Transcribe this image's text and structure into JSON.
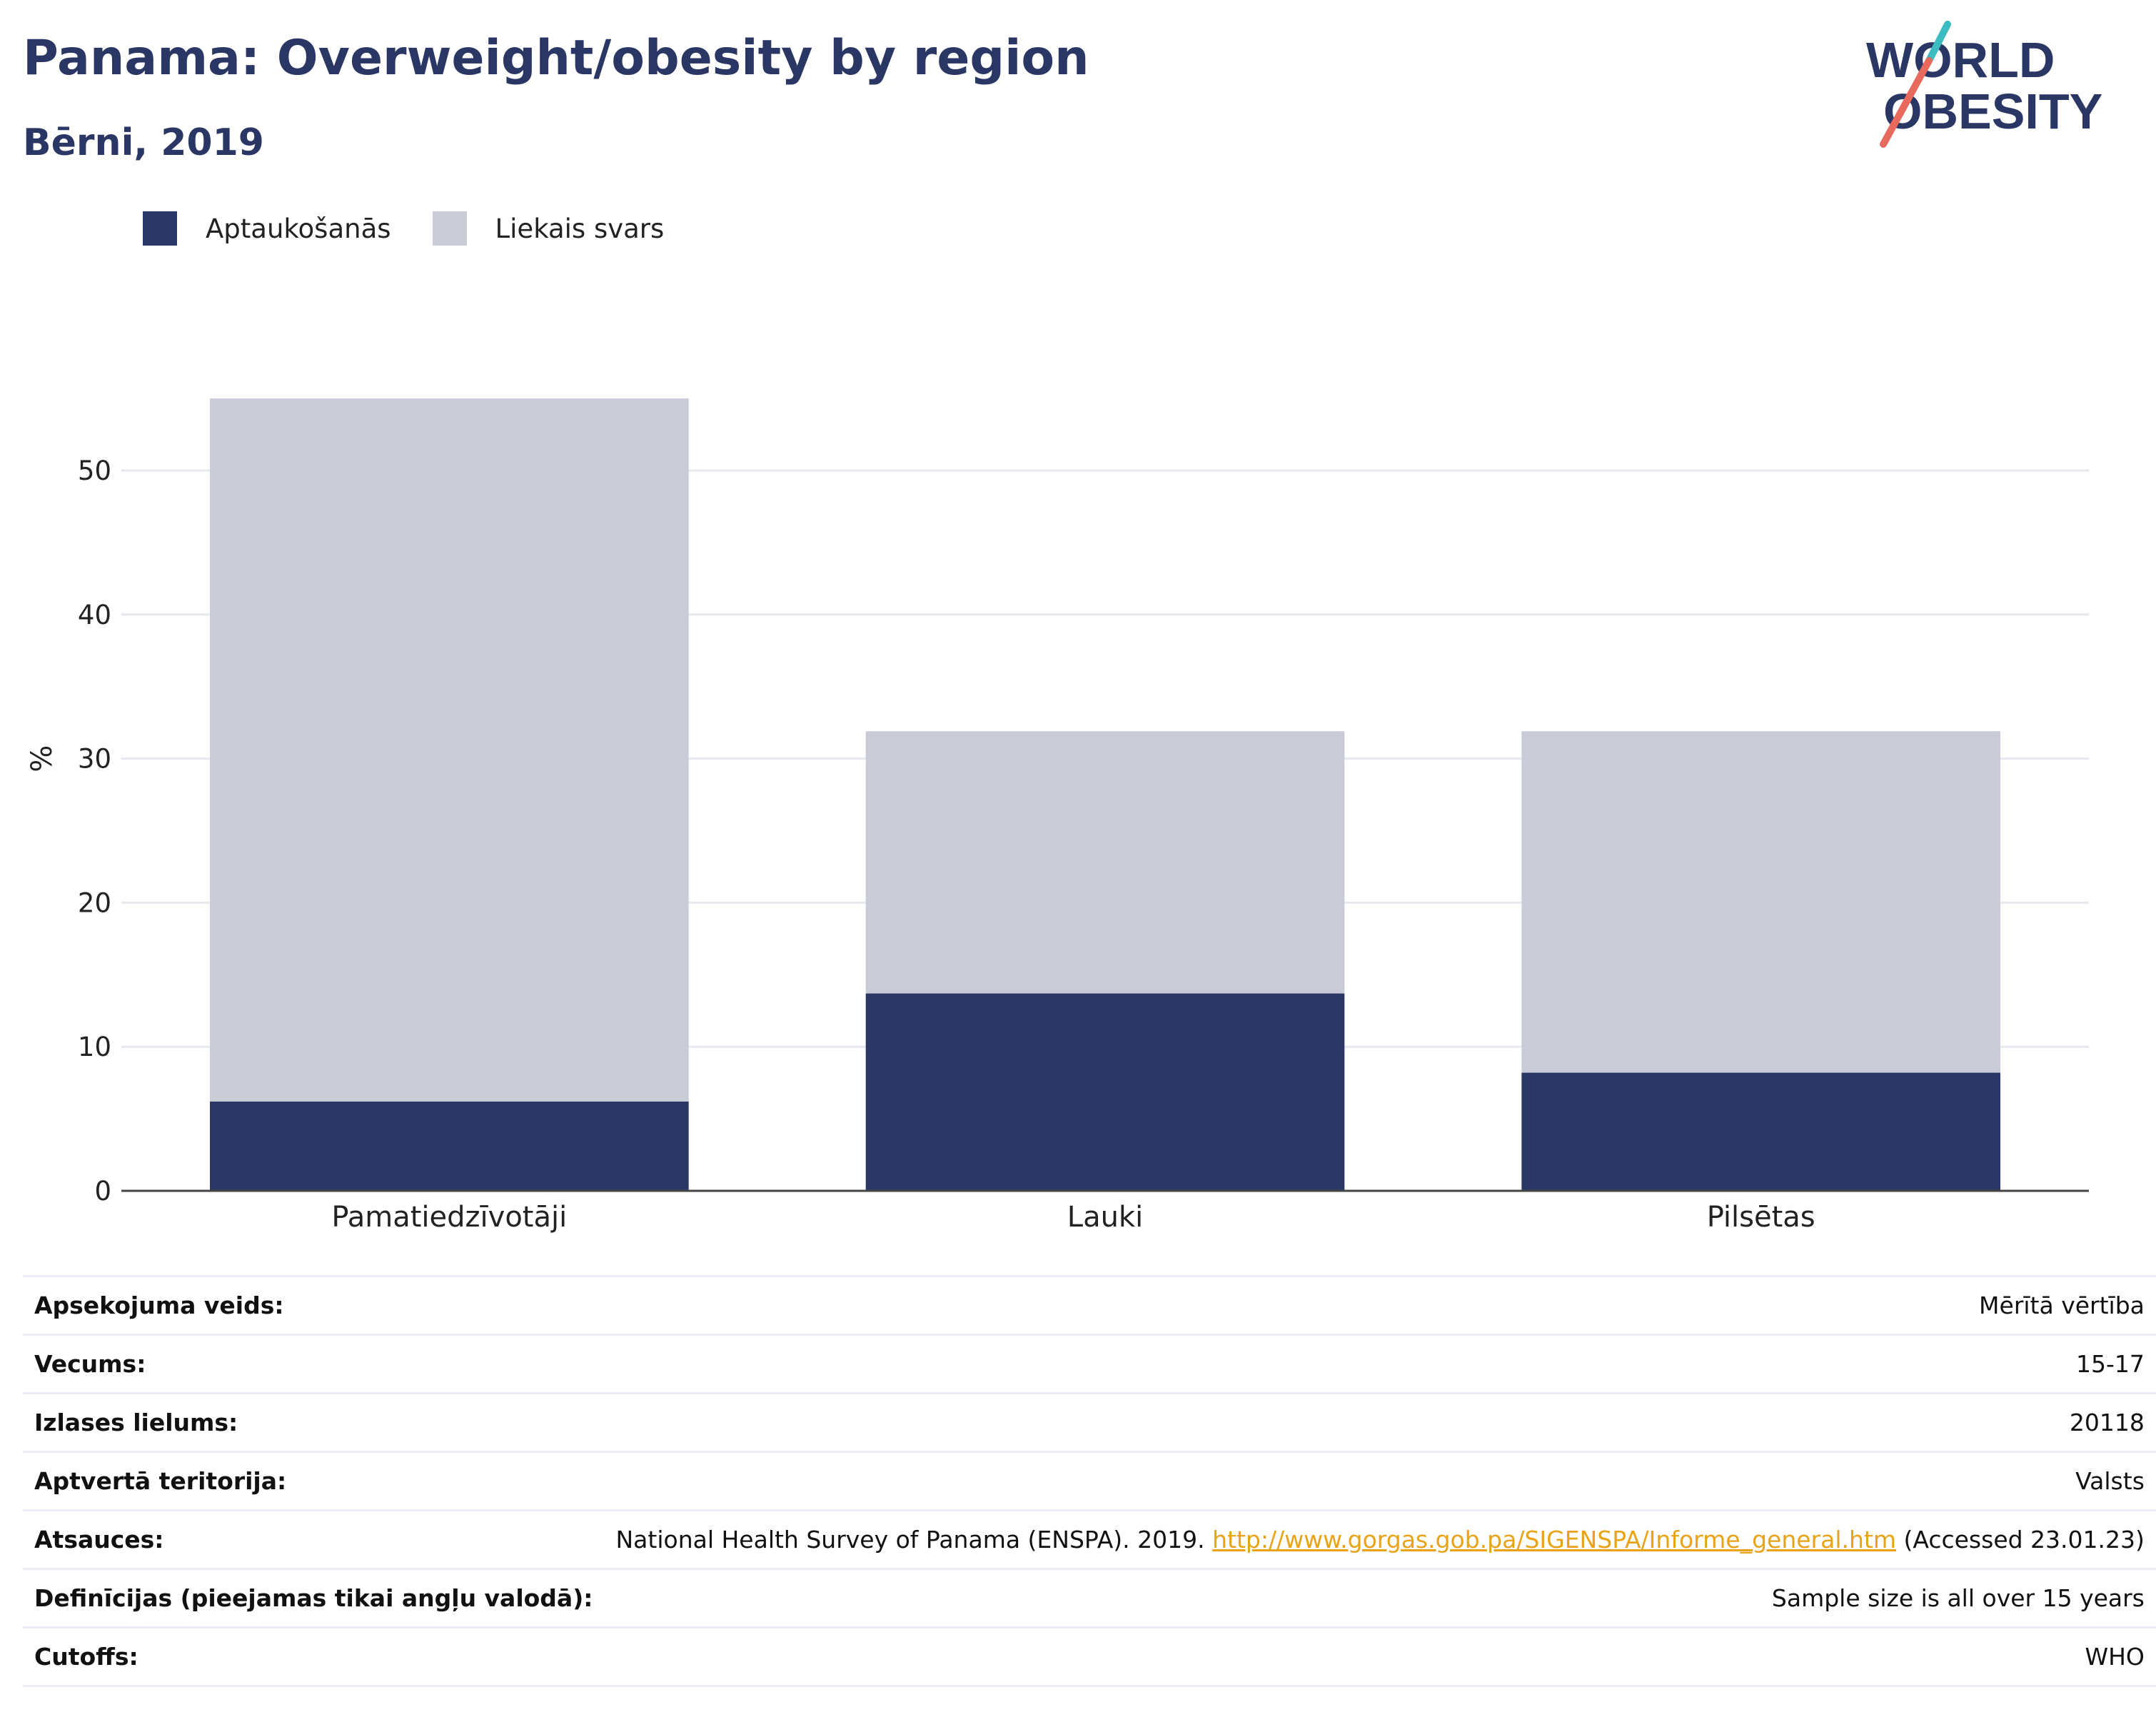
{
  "header": {
    "title": "Panama: Overweight/obesity by region",
    "subtitle": "Bērni, 2019"
  },
  "logo": {
    "line1": "WORLD",
    "line2": "OBESITY",
    "accent_teal": "#3bbcc0",
    "accent_coral": "#e86a5c",
    "text_color": "#2a3663"
  },
  "colors": {
    "obesity": "#2a3663",
    "overweight": "#c9ccd7",
    "title": "#2a3663",
    "link": "#e8a317"
  },
  "legend": {
    "items": [
      {
        "label": "Aptaukošanās",
        "color": "#2a3663"
      },
      {
        "label": "Liekais svars",
        "color": "#c9ccd7"
      }
    ]
  },
  "chart_data": {
    "type": "bar",
    "stacked": true,
    "categories": [
      "Pamatiedzīvotāji",
      "Lauki",
      "Pilsētas"
    ],
    "series": [
      {
        "name": "Aptaukošanās",
        "values": [
          6.2,
          13.7,
          8.2
        ],
        "color": "#2a3663"
      },
      {
        "name": "Liekais svars",
        "values": [
          48.8,
          18.2,
          23.7
        ],
        "color": "#c9ccd7"
      }
    ],
    "ylabel": "%",
    "ylim": [
      0,
      60
    ],
    "yticks": [
      0,
      10,
      20,
      30,
      40,
      50
    ],
    "grid": true
  },
  "info": {
    "rows": [
      {
        "label": "Apsekojuma veids:",
        "value": "Mērītā vērtība"
      },
      {
        "label": "Vecums:",
        "value": "15-17"
      },
      {
        "label": "Izlases lielums:",
        "value": "20118"
      },
      {
        "label": "Aptvertā teritorija:",
        "value": "Valsts"
      },
      {
        "label": "Definīcijas (pieejamas tikai angļu valodā):",
        "value": "Sample size is all over 15 years"
      },
      {
        "label": "Cutoffs:",
        "value": "WHO"
      }
    ],
    "references": {
      "label": "Atsauces:",
      "prefix": "National Health Survey of Panama (ENSPA). 2019. ",
      "link": "http://www.gorgas.gob.pa/SIGENSPA/Informe_general.htm",
      "suffix": " (Accessed 23.01.23)"
    }
  }
}
